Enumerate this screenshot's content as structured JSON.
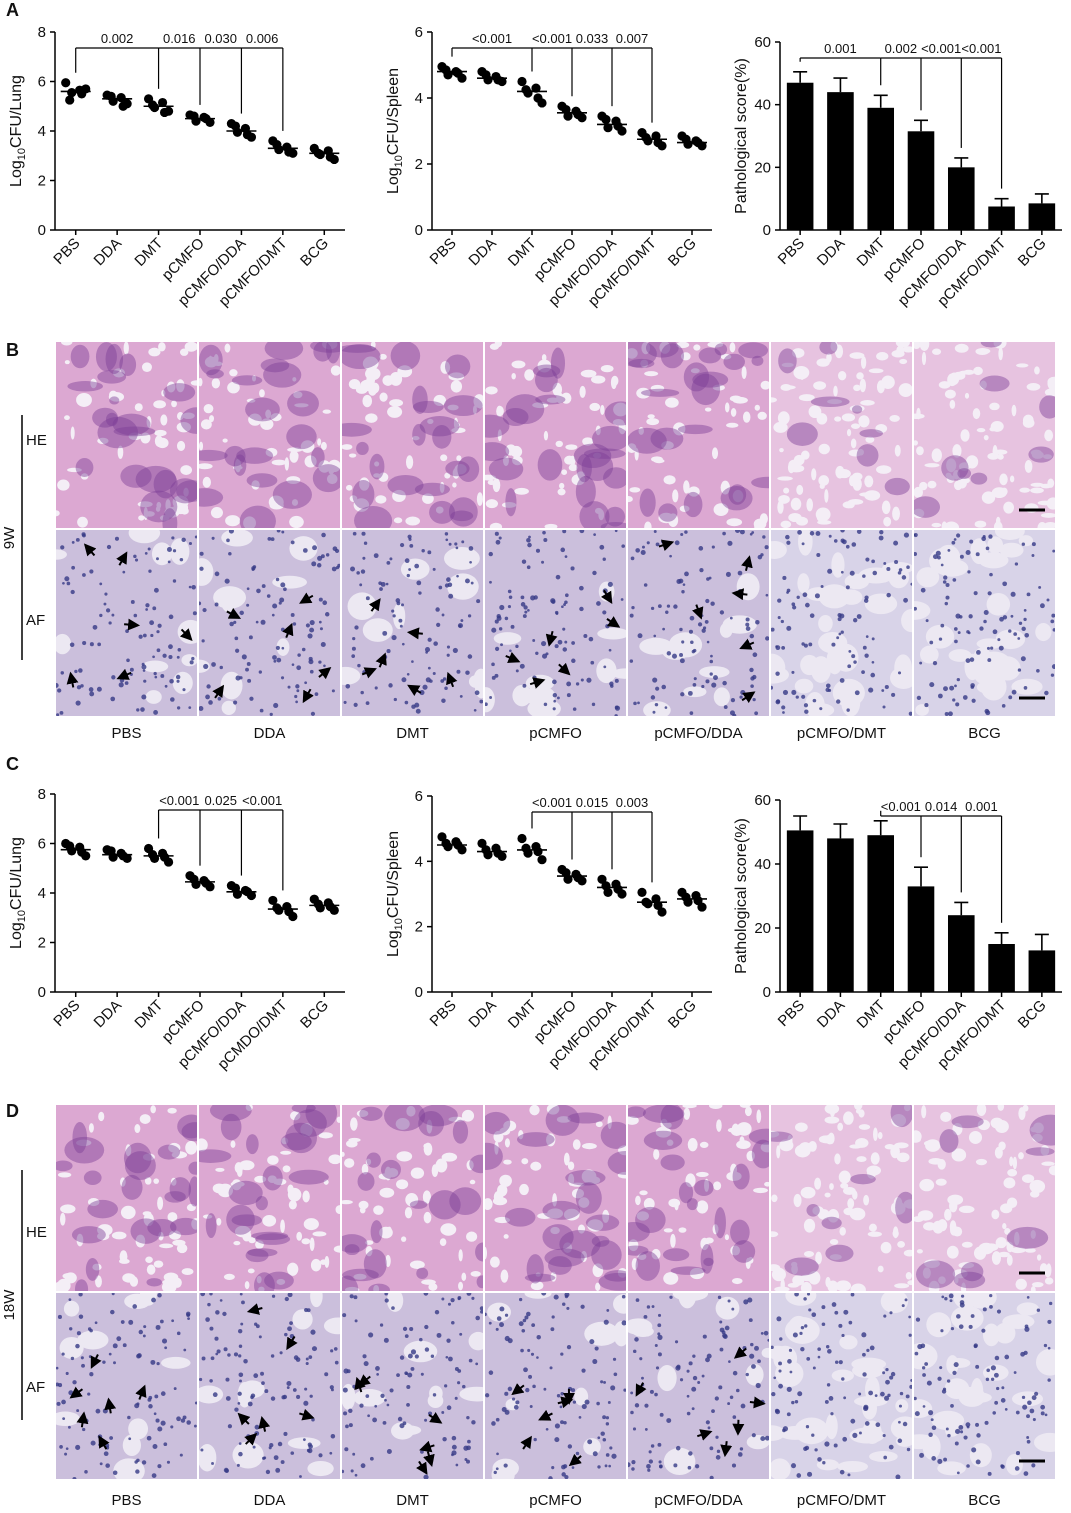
{
  "panel_labels": [
    "A",
    "B",
    "C",
    "D"
  ],
  "chart_data": [
    {
      "type": "dotplot",
      "ylabel": {
        "prefix": "Log",
        "sub": "10",
        "suffix": "CFU/Lung"
      },
      "categories": [
        "PBS",
        "DDA",
        "DMT",
        "pCMFO",
        "pCMFO/DDA",
        "pCMFO/DMT",
        "BCG"
      ],
      "values": [
        [
          5.95,
          5.55,
          5.65,
          5.7,
          5.25,
          5.5
        ],
        [
          5.45,
          5.2,
          5.35,
          5.1,
          5.4,
          5.0
        ],
        [
          5.3,
          4.95,
          5.15,
          4.8,
          5.05,
          4.75
        ],
        [
          4.65,
          4.4,
          4.55,
          4.35,
          4.6,
          4.5
        ],
        [
          4.3,
          3.95,
          4.1,
          3.75,
          4.2,
          3.85
        ],
        [
          3.6,
          3.25,
          3.35,
          3.1,
          3.45,
          3.15
        ],
        [
          3.3,
          3.05,
          3.2,
          2.85,
          3.1,
          2.95
        ]
      ],
      "means": [
        5.6,
        5.3,
        5.0,
        4.5,
        4.0,
        3.3,
        3.1
      ],
      "color": "#000000",
      "ylim": [
        0,
        8
      ],
      "yticks": [
        0,
        2,
        4,
        6,
        8
      ],
      "comparisons": [
        {
          "from": 0,
          "to": 2,
          "label": "0.002"
        },
        {
          "from": 0,
          "to": 3,
          "label": "0.016"
        },
        {
          "from": 0,
          "to": 4,
          "label": "0.030"
        },
        {
          "from": 0,
          "to": 5,
          "label": "0.006"
        }
      ]
    },
    {
      "type": "dotplot",
      "ylabel": {
        "prefix": "Log",
        "sub": "10",
        "suffix": "CFU/Spleen"
      },
      "categories": [
        "PBS",
        "DDA",
        "DMT",
        "pCMFO",
        "pCMFO/DDA",
        "pCMFO/DMT",
        "BCG"
      ],
      "values": [
        [
          4.95,
          4.7,
          4.8,
          4.6,
          4.85,
          4.75
        ],
        [
          4.8,
          4.55,
          4.65,
          4.5,
          4.7,
          4.55
        ],
        [
          4.5,
          4.15,
          4.3,
          3.85,
          4.25,
          4.0
        ],
        [
          3.75,
          3.45,
          3.6,
          3.4,
          3.65,
          3.5
        ],
        [
          3.45,
          3.1,
          3.3,
          3.0,
          3.35,
          3.15
        ],
        [
          2.95,
          2.7,
          2.85,
          2.55,
          2.8,
          2.65
        ],
        [
          2.85,
          2.6,
          2.7,
          2.55,
          2.75,
          2.65
        ]
      ],
      "means": [
        4.8,
        4.6,
        4.2,
        3.55,
        3.2,
        2.75,
        2.65
      ],
      "color": "#000000",
      "ylim": [
        0,
        6
      ],
      "yticks": [
        0,
        2,
        4,
        6
      ],
      "comparisons": [
        {
          "from": 0,
          "to": 2,
          "label": "<0.001"
        },
        {
          "from": 0,
          "to": 3,
          "label": "<0.001"
        },
        {
          "from": 0,
          "to": 4,
          "label": "0.033"
        },
        {
          "from": 0,
          "to": 5,
          "label": "0.007"
        }
      ]
    },
    {
      "type": "bar",
      "ylabel": {
        "prefix": "Pathological score(%)"
      },
      "categories": [
        "PBS",
        "DDA",
        "DMT",
        "pCMFO",
        "pCMFO/DDA",
        "pCMFO/DMT",
        "BCG"
      ],
      "values": [
        47,
        44,
        39,
        31.5,
        20,
        7.5,
        8.5
      ],
      "errors": [
        3.5,
        4.5,
        4,
        3.5,
        3,
        2.5,
        3
      ],
      "color": "#000000",
      "ylim": [
        0,
        60
      ],
      "yticks": [
        0,
        20,
        40,
        60
      ],
      "comparisons": [
        {
          "from": 0,
          "to": 2,
          "label": "0.001"
        },
        {
          "from": 0,
          "to": 3,
          "label": "0.002"
        },
        {
          "from": 0,
          "to": 4,
          "label": "<0.001"
        },
        {
          "from": 0,
          "to": 5,
          "label": "<0.001"
        }
      ]
    },
    {
      "type": "dotplot",
      "ylabel": {
        "prefix": "Log",
        "sub": "10",
        "suffix": "CFU/Lung"
      },
      "categories": [
        "PBS",
        "DDA",
        "DMT",
        "pCMFO",
        "pCMFO/DDA",
        "pCMDO/DMT",
        "BCG"
      ],
      "values": [
        [
          6.0,
          5.7,
          5.85,
          5.5,
          5.9,
          5.65
        ],
        [
          5.75,
          5.45,
          5.6,
          5.4,
          5.7,
          5.5
        ],
        [
          5.8,
          5.4,
          5.6,
          5.25,
          5.55,
          5.45
        ],
        [
          4.7,
          4.35,
          4.5,
          4.25,
          4.55,
          4.4
        ],
        [
          4.3,
          3.95,
          4.1,
          3.9,
          4.2,
          4.05
        ],
        [
          3.7,
          3.3,
          3.45,
          3.05,
          3.4,
          3.25
        ],
        [
          3.75,
          3.4,
          3.6,
          3.3,
          3.55,
          3.45
        ]
      ],
      "means": [
        5.75,
        5.55,
        5.5,
        4.45,
        4.05,
        3.35,
        3.5
      ],
      "color": "#000000",
      "ylim": [
        0,
        8
      ],
      "yticks": [
        0,
        2,
        4,
        6,
        8
      ],
      "comparisons": [
        {
          "from": 2,
          "to": 3,
          "label": "<0.001"
        },
        {
          "from": 2,
          "to": 4,
          "label": "0.025"
        },
        {
          "from": 2,
          "to": 5,
          "label": "<0.001"
        }
      ]
    },
    {
      "type": "dotplot",
      "ylabel": {
        "prefix": "Log",
        "sub": "10",
        "suffix": "CFU/Spleen"
      },
      "categories": [
        "PBS",
        "DDA",
        "DMT",
        "pCMFO",
        "pCMFO/DDA",
        "pCMFO/DMT",
        "BCG"
      ],
      "values": [
        [
          4.75,
          4.45,
          4.6,
          4.35,
          4.55,
          4.5
        ],
        [
          4.55,
          4.2,
          4.4,
          4.15,
          4.35,
          4.25
        ],
        [
          4.7,
          4.25,
          4.45,
          4.05,
          4.4,
          4.3
        ],
        [
          3.75,
          3.45,
          3.6,
          3.4,
          3.65,
          3.5
        ],
        [
          3.45,
          3.05,
          3.3,
          3.0,
          3.25,
          3.15
        ],
        [
          3.05,
          2.7,
          2.85,
          2.45,
          2.75,
          2.65
        ],
        [
          3.05,
          2.75,
          2.95,
          2.6,
          2.9,
          2.8
        ]
      ],
      "means": [
        4.5,
        4.3,
        4.35,
        3.55,
        3.2,
        2.75,
        2.85
      ],
      "color": "#000000",
      "ylim": [
        0,
        6
      ],
      "yticks": [
        0,
        2,
        4,
        6
      ],
      "comparisons": [
        {
          "from": 2,
          "to": 3,
          "label": "<0.001"
        },
        {
          "from": 2,
          "to": 4,
          "label": "0.015"
        },
        {
          "from": 2,
          "to": 5,
          "label": "0.003"
        }
      ]
    },
    {
      "type": "bar",
      "ylabel": {
        "prefix": "Pathological score(%)"
      },
      "categories": [
        "PBS",
        "DDA",
        "DMT",
        "pCMFO",
        "pCMFO/DDA",
        "pCMFO/DMT",
        "BCG"
      ],
      "values": [
        50.5,
        48,
        49,
        33,
        24,
        15,
        13
      ],
      "errors": [
        4.5,
        4.5,
        4.5,
        6,
        4,
        3.5,
        5
      ],
      "color": "#000000",
      "ylim": [
        0,
        60
      ],
      "yticks": [
        0,
        20,
        40,
        60
      ],
      "comparisons": [
        {
          "from": 2,
          "to": 3,
          "label": "<0.001"
        },
        {
          "from": 2,
          "to": 4,
          "label": "0.014"
        },
        {
          "from": 2,
          "to": 5,
          "label": "0.001"
        }
      ]
    }
  ],
  "histology": [
    {
      "week": "9W",
      "rows": [
        "HE",
        "AF"
      ],
      "columns": [
        "PBS",
        "DDA",
        "DMT",
        "pCMFO",
        "pCMFO/DDA",
        "pCMFO/DMT",
        "BCG"
      ]
    },
    {
      "week": "18W",
      "rows": [
        "HE",
        "AF"
      ],
      "columns": [
        "PBS",
        "DDA",
        "DMT",
        "pCMFO",
        "pCMFO/DDA",
        "pCMFO/DMT",
        "BCG"
      ]
    }
  ]
}
